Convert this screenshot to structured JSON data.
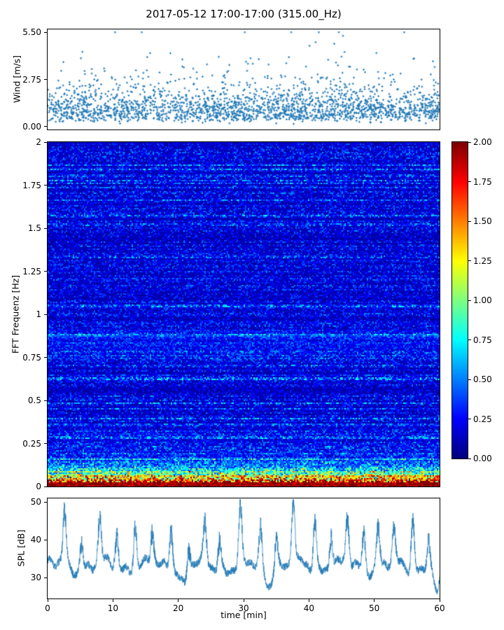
{
  "figure": {
    "title": "2017-05-12 17:00-17:00 (315.00_Hz)",
    "background_color": "#ffffff",
    "text_color": "#000000"
  },
  "chart_data": [
    {
      "id": "wind",
      "type": "scatter",
      "ylabel": "Wind [m/s]",
      "ylim": [
        0.0,
        5.5
      ],
      "y_margin": 0.03,
      "yticks": [
        0.0,
        2.75,
        5.5
      ],
      "ytick_labels": [
        "0.00",
        "2.75",
        "5.50"
      ],
      "xlim": [
        0,
        60
      ],
      "marker_color": "#1f77b4",
      "marker_size_px": 3,
      "n_points": 2200,
      "seed": 101,
      "y_distribution": {
        "kind": "lognormal",
        "median_ms": 1.1,
        "sigma": 0.55,
        "max_ms": 5.5
      },
      "grid": false,
      "legend": "none"
    },
    {
      "id": "spectrogram",
      "type": "heatmap",
      "ylabel": "FFT Frequenz [Hz]",
      "ylim": [
        0,
        2
      ],
      "yticks": [
        0,
        0.25,
        0.5,
        0.75,
        1,
        1.25,
        1.5,
        1.75,
        2
      ],
      "ytick_labels": [
        "0",
        "0.25",
        "0.5",
        "0.75",
        "1",
        "1.25",
        "1.5",
        "1.75",
        "2"
      ],
      "xlim": [
        0,
        60
      ],
      "colormap": "jet",
      "vmin": 0.0,
      "vmax": 2.0,
      "seed": 7,
      "grid_cols": 280,
      "grid_rows": 246,
      "pattern": {
        "background_level_range": [
          0.05,
          0.55
        ],
        "broadband_low_freq_band": "values rise sharply below 0.15 Hz, saturating near vmax at the lowest bins",
        "bottom_line_value": 1.9,
        "soft_bright_band_hz": 0.84,
        "occasional_cyan_streaks_below_hz": 0.35
      },
      "colorbar": {
        "ticks": [
          2.0,
          1.75,
          1.5,
          1.25,
          1.0,
          0.75,
          0.5,
          0.25,
          0.0
        ],
        "tick_labels": [
          "2.00",
          "1.75",
          "1.50",
          "1.25",
          "1.00",
          "0.75",
          "0.50",
          "0.25",
          "0.00"
        ]
      },
      "grid": false
    },
    {
      "id": "spl",
      "type": "line",
      "ylabel": "SPL [dB]",
      "xlabel": "time [min]",
      "ylim": [
        24.5,
        51
      ],
      "yticks": [
        30,
        40,
        50
      ],
      "ytick_labels": [
        "30",
        "40",
        "50"
      ],
      "xlim": [
        0,
        60
      ],
      "xticks": [
        0,
        10,
        20,
        30,
        40,
        50,
        60
      ],
      "xtick_labels": [
        "0",
        "10",
        "20",
        "30",
        "40",
        "50",
        "60"
      ],
      "line_color": "#1f77b4",
      "seed": 33,
      "n_samples": 2400,
      "baseline_db": 33,
      "jitter_db": 1.4,
      "peak_sigma_min": 0.24,
      "peaks": [
        {
          "t": 2.6,
          "db": 47
        },
        {
          "t": 5.2,
          "db": 40
        },
        {
          "t": 8.0,
          "db": 45
        },
        {
          "t": 10.6,
          "db": 41
        },
        {
          "t": 13.4,
          "db": 44
        },
        {
          "t": 16.0,
          "db": 41
        },
        {
          "t": 18.9,
          "db": 44
        },
        {
          "t": 21.6,
          "db": 40
        },
        {
          "t": 24.1,
          "db": 43
        },
        {
          "t": 26.3,
          "db": 40
        },
        {
          "t": 29.5,
          "db": 47
        },
        {
          "t": 32.6,
          "db": 42
        },
        {
          "t": 35.0,
          "db": 42
        },
        {
          "t": 37.6,
          "db": 50
        },
        {
          "t": 40.9,
          "db": 46
        },
        {
          "t": 43.4,
          "db": 42
        },
        {
          "t": 45.9,
          "db": 45
        },
        {
          "t": 48.4,
          "db": 42
        },
        {
          "t": 50.6,
          "db": 44
        },
        {
          "t": 53.0,
          "db": 41
        },
        {
          "t": 55.9,
          "db": 46
        },
        {
          "t": 58.3,
          "db": 41
        }
      ],
      "dips": [
        {
          "t": 21.0,
          "db": 28
        },
        {
          "t": 33.8,
          "db": 29
        },
        {
          "t": 59.6,
          "db": 25
        }
      ],
      "grid": false
    }
  ]
}
